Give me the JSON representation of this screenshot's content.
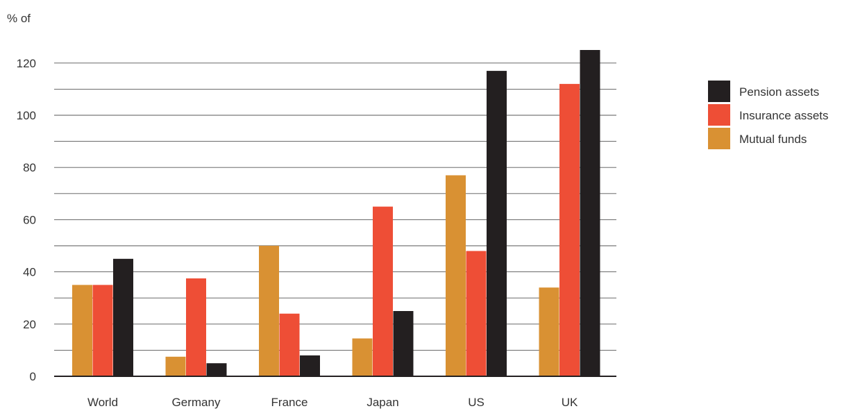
{
  "chart_data": {
    "type": "bar",
    "ylabel": "% of",
    "ylim": [
      0,
      125
    ],
    "y_ticks": [
      0,
      20,
      40,
      60,
      80,
      100,
      120
    ],
    "grid": true,
    "legend_position": "top-right",
    "categories": [
      "World",
      "Germany",
      "France",
      "Japan",
      "US",
      "UK"
    ],
    "series": [
      {
        "name": "Mutual funds",
        "color": "#d99133",
        "values": [
          35,
          7.5,
          50,
          14.5,
          77,
          34
        ]
      },
      {
        "name": "Insurance assets",
        "color": "#ee4e36",
        "values": [
          35,
          37.5,
          24,
          65,
          48,
          112
        ]
      },
      {
        "name": "Pension assets",
        "color": "#231f20",
        "values": [
          45,
          5,
          8,
          25,
          117,
          125
        ]
      }
    ],
    "legend_order": [
      "Pension assets",
      "Insurance assets",
      "Mutual funds"
    ]
  }
}
